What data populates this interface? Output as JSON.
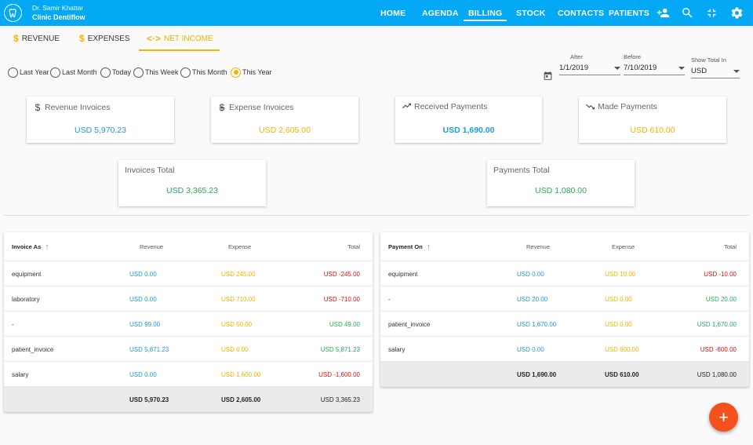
{
  "header": {
    "doctor": "Dr. Samir Khattar",
    "clinic": "Clinic Dentiflow",
    "nav": [
      "HOME",
      "AGENDA",
      "BILLING",
      "STOCK",
      "CONTACTS",
      "PATIENTS"
    ],
    "active_nav": "BILLING",
    "icons": [
      "add-person-icon",
      "search-icon",
      "fullscreen-icon",
      "settings-icon"
    ]
  },
  "subtabs": [
    {
      "label": "REVENUE",
      "icon": "$"
    },
    {
      "label": "EXPENSES",
      "icon": "$"
    },
    {
      "label": "NET INCOME",
      "icon": "<·>"
    }
  ],
  "active_subtab": "NET INCOME",
  "periods": [
    "Last Year",
    "Last Month",
    "Today",
    "This Week",
    "This Month",
    "This Year"
  ],
  "selected_period": "This Year",
  "filters": {
    "after_label": "After",
    "after_value": "1/1/2019",
    "before_label": "Before",
    "before_value": "7/10/2019",
    "currency_label": "Show Total In",
    "currency_value": "USD"
  },
  "cards": {
    "revenue_invoices": {
      "title": "Revenue Invoices",
      "value": "USD 5,970.23"
    },
    "expense_invoices": {
      "title": "Expense Invoices",
      "value": "USD 2,605.00"
    },
    "received_payments": {
      "title": "Received Payments",
      "value": "USD 1,690.00"
    },
    "made_payments": {
      "title": "Made Payments",
      "value": "USD 610.00"
    },
    "invoices_total": {
      "title": "Invoices Total",
      "value": "USD 3,365.23"
    },
    "payments_total": {
      "title": "Payments Total",
      "value": "USD 1,080.00"
    }
  },
  "invoice_table": {
    "headers": [
      "Invoice As",
      "Revenue",
      "Expense",
      "Total"
    ],
    "rows": [
      [
        "equipment",
        "USD 0.00",
        "USD 245.00",
        "USD -245.00"
      ],
      [
        "laboratory",
        "USD 0.00",
        "USD 710.00",
        "USD -710.00"
      ],
      [
        "-",
        "USD 99.00",
        "USD 50.00",
        "USD 49.00"
      ],
      [
        "patient_invoice",
        "USD 5,871.23",
        "USD 0.00",
        "USD 5,871.23"
      ],
      [
        "salary",
        "USD 0.00",
        "USD 1,600.00",
        "USD -1,600.00"
      ]
    ],
    "totals": [
      "",
      "USD 5,970.23",
      "USD 2,605.00",
      "USD 3,365.23"
    ]
  },
  "payment_table": {
    "headers": [
      "Payment On",
      "Revenue",
      "Expense",
      "Total"
    ],
    "rows": [
      [
        "equipment",
        "USD 0.00",
        "USD 10.00",
        "USD -10.00"
      ],
      [
        "-",
        "USD 20.00",
        "USD 0.00",
        "USD 20.00"
      ],
      [
        "patient_invoice",
        "USD 1,670.00",
        "USD 0.00",
        "USD 1,670.00"
      ],
      [
        "salary",
        "USD 0.00",
        "USD 600.00",
        "USD -600.00"
      ]
    ],
    "totals": [
      "",
      "USD 1,690.00",
      "USD 610.00",
      "USD 1,080.00"
    ]
  },
  "fab": {
    "label": "+"
  },
  "colors": {
    "primary": "#03a9f4",
    "accent": "#f2b400",
    "revenue": "#1e9bd8",
    "expense": "#f0b200",
    "positive": "#27a85b",
    "negative": "#dd1111",
    "fab": "#f4511e"
  }
}
